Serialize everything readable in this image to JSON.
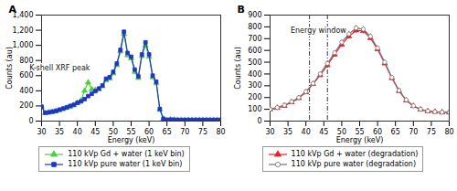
{
  "chart_data": [
    {
      "type": "line",
      "title": "A",
      "xlabel": "Energy (keV)",
      "ylabel": "Counts (au)",
      "xlim": [
        30,
        80
      ],
      "xticks": [
        30,
        35,
        40,
        45,
        50,
        55,
        60,
        65,
        70,
        75,
        80
      ],
      "ylim": [
        0,
        1400
      ],
      "yticks": [
        0,
        200,
        400,
        600,
        800,
        {
          "value": 1000,
          "label": "1,000"
        },
        {
          "value": 1200,
          "label": "1,200"
        },
        {
          "value": 1400,
          "label": "1,400"
        }
      ],
      "grid": false,
      "legend": "bottom",
      "x": [
        30,
        31,
        32,
        33,
        34,
        35,
        36,
        37,
        38,
        39,
        40,
        41,
        42,
        43,
        44,
        45,
        46,
        47,
        48,
        49,
        50,
        51,
        52,
        53,
        54,
        55,
        56,
        57,
        58,
        59,
        60,
        61,
        62,
        63,
        64,
        65,
        66,
        67,
        68,
        69,
        70,
        71,
        72,
        73,
        74,
        75,
        76,
        77,
        78,
        79,
        80
      ],
      "series": [
        {
          "name": "110 kVp Gd + water (1 keV bin)",
          "color": "#4cd13a",
          "marker": "triangle",
          "line_style": "solid",
          "values": [
            190,
            105,
            115,
            120,
            130,
            145,
            160,
            175,
            190,
            210,
            240,
            270,
            400,
            510,
            420,
            410,
            420,
            460,
            540,
            560,
            630,
            740,
            920,
            1150,
            870,
            830,
            650,
            570,
            860,
            1000,
            850,
            580,
            500,
            150,
            30,
            15,
            20,
            18,
            15,
            15,
            15,
            15,
            15,
            15,
            15,
            15,
            15,
            15,
            15,
            15,
            15
          ]
        },
        {
          "name": "110 kVp pure water (1 keV bin)",
          "color": "#2233cc",
          "marker": "square",
          "line_style": "solid",
          "values": [
            190,
            110,
            115,
            125,
            135,
            150,
            165,
            180,
            200,
            215,
            240,
            260,
            290,
            330,
            360,
            395,
            430,
            470,
            560,
            580,
            650,
            760,
            940,
            1180,
            900,
            850,
            680,
            590,
            880,
            1040,
            880,
            600,
            520,
            160,
            30,
            15,
            20,
            18,
            15,
            15,
            15,
            15,
            15,
            15,
            15,
            15,
            15,
            15,
            15,
            15,
            15
          ]
        }
      ],
      "annotation": {
        "text": "K-shell XRF peak",
        "x": 43,
        "y": 510
      }
    },
    {
      "type": "line",
      "title": "B",
      "xlabel": "Energy (keV)",
      "ylabel": "Counts (au)",
      "xlim": [
        30,
        80
      ],
      "xticks": [
        30,
        35,
        40,
        45,
        50,
        55,
        60,
        65,
        70,
        75,
        80
      ],
      "ylim": [
        0,
        900
      ],
      "yticks": [
        0,
        100,
        200,
        300,
        400,
        500,
        600,
        700,
        800,
        900
      ],
      "grid": false,
      "legend": "bottom",
      "x": [
        30,
        32,
        34,
        36,
        38,
        40,
        42,
        44,
        46,
        48,
        50,
        52,
        54,
        56,
        58,
        60,
        62,
        64,
        66,
        68,
        70,
        72,
        74,
        76,
        78,
        80
      ],
      "series": [
        {
          "name": "110 kVp Gd + water (degradation)",
          "color": "#e8202a",
          "marker": "triangle",
          "line_style": "solid",
          "values": [
            100,
            112,
            130,
            160,
            195,
            245,
            315,
            390,
            475,
            565,
            650,
            720,
            770,
            765,
            705,
            610,
            490,
            365,
            255,
            175,
            128,
            98,
            84,
            79,
            74,
            74
          ],
          "errors": [
            6,
            6,
            7,
            8,
            9,
            10,
            12,
            14,
            16,
            18,
            20,
            22,
            24,
            24,
            22,
            20,
            18,
            15,
            12,
            10,
            8,
            7,
            6,
            6,
            6,
            6
          ]
        },
        {
          "name": "110 kVp pure water (degradation)",
          "color": "#777777",
          "marker": "open_circle",
          "line_style": "solid",
          "values": [
            100,
            115,
            135,
            165,
            200,
            250,
            320,
            400,
            490,
            580,
            670,
            740,
            790,
            780,
            720,
            620,
            500,
            370,
            260,
            180,
            130,
            100,
            85,
            80,
            75,
            75
          ],
          "errors": [
            6,
            6,
            7,
            8,
            9,
            10,
            12,
            14,
            16,
            18,
            20,
            22,
            24,
            24,
            22,
            20,
            18,
            15,
            12,
            10,
            8,
            7,
            6,
            6,
            6,
            6
          ]
        }
      ],
      "energy_window": {
        "label": "Energy window",
        "x": [
          41,
          46
        ]
      }
    }
  ]
}
